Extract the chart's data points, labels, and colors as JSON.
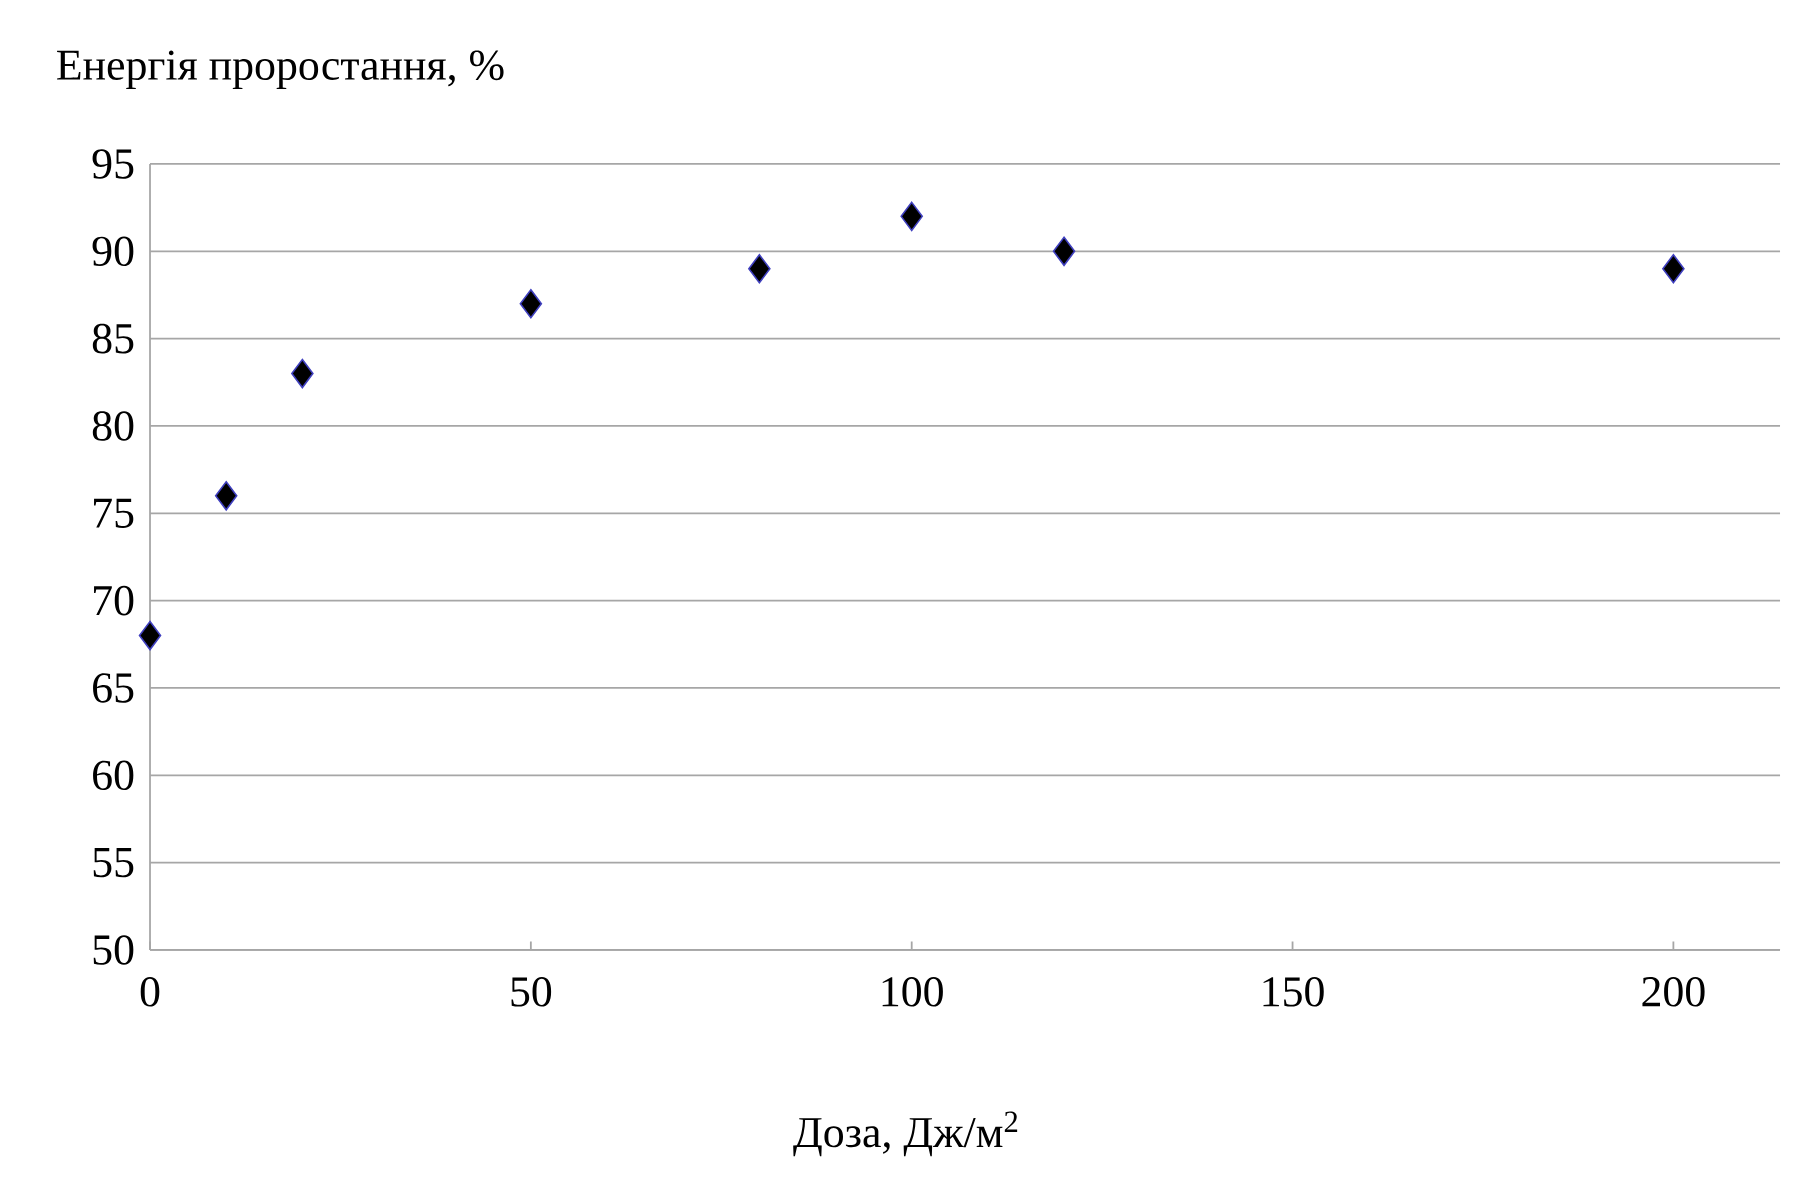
{
  "chart_data": {
    "type": "scatter",
    "ylabel": "Енергія проростання, %",
    "xlabel": "Доза,  Дж/м$^{2}$",
    "x": [
      0,
      10,
      20,
      50,
      80,
      100,
      120,
      200
    ],
    "values": [
      68,
      76,
      83,
      87,
      89,
      92,
      90,
      89
    ],
    "color": "#000000",
    "marker": "diamond",
    "xlim": [
      0,
      214
    ],
    "ylim": [
      50,
      95
    ],
    "xticks": [
      0,
      50,
      100,
      150,
      200
    ],
    "yticks": [
      50,
      55,
      60,
      65,
      70,
      75,
      80,
      85,
      90,
      95
    ],
    "grid": "y"
  }
}
